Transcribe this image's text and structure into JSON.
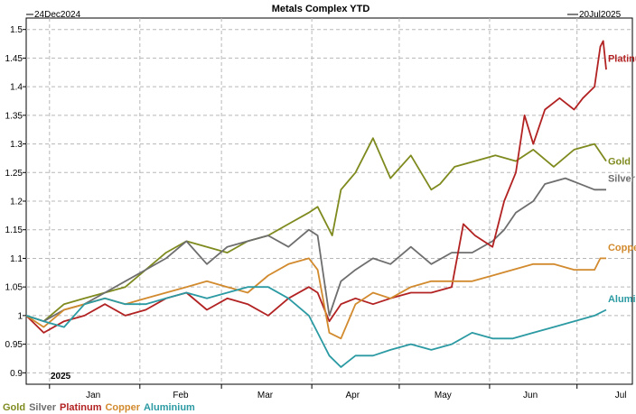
{
  "chart_data": {
    "type": "line",
    "title": "Metals Complex YTD",
    "start_label": "24Dec2024",
    "end_label": "20Jul2025",
    "year_label": "2025",
    "x_ticks": [
      "Jan",
      "Feb",
      "Mar",
      "Apr",
      "May",
      "Jun",
      "Jul"
    ],
    "y_ticks": [
      "0.9",
      "0.95",
      "1",
      "1.05",
      "1.1",
      "1.15",
      "1.2",
      "1.25",
      "1.3",
      "1.35",
      "1.4",
      "1.45",
      "1.5"
    ],
    "ylim": [
      0.88,
      1.52
    ],
    "x_range": [
      "2024-12-24",
      "2025-07-20"
    ],
    "grid": true,
    "legend_position": "bottom-left",
    "series": [
      {
        "name": "Gold",
        "color": "#7f8a1e",
        "dates": [
          "2024-12-24",
          "2024-12-30",
          "2025-01-06",
          "2025-01-13",
          "2025-01-20",
          "2025-01-27",
          "2025-02-03",
          "2025-02-10",
          "2025-02-17",
          "2025-02-24",
          "2025-03-03",
          "2025-03-10",
          "2025-03-17",
          "2025-03-24",
          "2025-03-31",
          "2025-04-03",
          "2025-04-08",
          "2025-04-11",
          "2025-04-16",
          "2025-04-22",
          "2025-04-28",
          "2025-05-05",
          "2025-05-12",
          "2025-05-15",
          "2025-05-20",
          "2025-05-27",
          "2025-06-03",
          "2025-06-10",
          "2025-06-16",
          "2025-06-23",
          "2025-06-30",
          "2025-07-07",
          "2025-07-11"
        ],
        "values": [
          1.0,
          0.99,
          1.02,
          1.03,
          1.04,
          1.05,
          1.08,
          1.11,
          1.13,
          1.12,
          1.11,
          1.13,
          1.14,
          1.16,
          1.18,
          1.19,
          1.14,
          1.22,
          1.25,
          1.31,
          1.24,
          1.28,
          1.22,
          1.23,
          1.26,
          1.27,
          1.28,
          1.27,
          1.29,
          1.26,
          1.29,
          1.3,
          1.27
        ]
      },
      {
        "name": "Silver",
        "color": "#6e6e6e",
        "dates": [
          "2024-12-24",
          "2024-12-30",
          "2025-01-06",
          "2025-01-13",
          "2025-01-20",
          "2025-01-27",
          "2025-02-03",
          "2025-02-10",
          "2025-02-17",
          "2025-02-24",
          "2025-03-03",
          "2025-03-10",
          "2025-03-17",
          "2025-03-24",
          "2025-03-31",
          "2025-04-03",
          "2025-04-07",
          "2025-04-11",
          "2025-04-16",
          "2025-04-22",
          "2025-04-28",
          "2025-05-05",
          "2025-05-12",
          "2025-05-19",
          "2025-05-26",
          "2025-06-02",
          "2025-06-06",
          "2025-06-10",
          "2025-06-16",
          "2025-06-20",
          "2025-06-27",
          "2025-07-07",
          "2025-07-11"
        ],
        "values": [
          1.0,
          0.99,
          1.01,
          1.02,
          1.04,
          1.06,
          1.08,
          1.1,
          1.13,
          1.09,
          1.12,
          1.13,
          1.14,
          1.12,
          1.15,
          1.14,
          1.0,
          1.06,
          1.08,
          1.1,
          1.09,
          1.12,
          1.09,
          1.11,
          1.11,
          1.13,
          1.15,
          1.18,
          1.2,
          1.23,
          1.24,
          1.22,
          1.22
        ]
      },
      {
        "name": "Platinum",
        "color": "#b22222",
        "dates": [
          "2024-12-24",
          "2024-12-30",
          "2025-01-06",
          "2025-01-13",
          "2025-01-20",
          "2025-01-27",
          "2025-02-03",
          "2025-02-10",
          "2025-02-17",
          "2025-02-24",
          "2025-03-03",
          "2025-03-10",
          "2025-03-17",
          "2025-03-24",
          "2025-03-31",
          "2025-04-03",
          "2025-04-07",
          "2025-04-11",
          "2025-04-16",
          "2025-04-22",
          "2025-04-28",
          "2025-05-05",
          "2025-05-12",
          "2025-05-19",
          "2025-05-23",
          "2025-05-27",
          "2025-06-02",
          "2025-06-06",
          "2025-06-10",
          "2025-06-13",
          "2025-06-16",
          "2025-06-20",
          "2025-06-25",
          "2025-06-30",
          "2025-07-03",
          "2025-07-07",
          "2025-07-09",
          "2025-07-10",
          "2025-07-11"
        ],
        "values": [
          1.0,
          0.97,
          0.99,
          1.0,
          1.02,
          1.0,
          1.01,
          1.03,
          1.04,
          1.01,
          1.03,
          1.02,
          1.0,
          1.03,
          1.05,
          1.04,
          0.99,
          1.02,
          1.03,
          1.02,
          1.03,
          1.04,
          1.04,
          1.05,
          1.16,
          1.14,
          1.12,
          1.2,
          1.25,
          1.35,
          1.3,
          1.36,
          1.38,
          1.36,
          1.38,
          1.4,
          1.47,
          1.48,
          1.43
        ]
      },
      {
        "name": "Copper",
        "color": "#d28a2e",
        "dates": [
          "2024-12-24",
          "2024-12-30",
          "2025-01-06",
          "2025-01-13",
          "2025-01-20",
          "2025-01-27",
          "2025-02-03",
          "2025-02-10",
          "2025-02-17",
          "2025-02-24",
          "2025-03-03",
          "2025-03-10",
          "2025-03-17",
          "2025-03-24",
          "2025-03-31",
          "2025-04-03",
          "2025-04-07",
          "2025-04-11",
          "2025-04-16",
          "2025-04-22",
          "2025-04-28",
          "2025-05-05",
          "2025-05-12",
          "2025-05-19",
          "2025-05-26",
          "2025-06-02",
          "2025-06-09",
          "2025-06-16",
          "2025-06-23",
          "2025-06-30",
          "2025-07-07",
          "2025-07-09",
          "2025-07-11"
        ],
        "values": [
          1.0,
          0.98,
          1.01,
          1.02,
          1.03,
          1.02,
          1.03,
          1.04,
          1.05,
          1.06,
          1.05,
          1.04,
          1.07,
          1.09,
          1.1,
          1.08,
          0.97,
          0.96,
          1.02,
          1.04,
          1.03,
          1.05,
          1.06,
          1.06,
          1.06,
          1.07,
          1.08,
          1.09,
          1.09,
          1.08,
          1.08,
          1.1,
          1.1
        ]
      },
      {
        "name": "Aluminium",
        "color": "#2b9aa3",
        "dates": [
          "2024-12-24",
          "2024-12-30",
          "2025-01-06",
          "2025-01-13",
          "2025-01-20",
          "2025-01-27",
          "2025-02-03",
          "2025-02-10",
          "2025-02-17",
          "2025-02-24",
          "2025-03-03",
          "2025-03-10",
          "2025-03-17",
          "2025-03-24",
          "2025-03-31",
          "2025-04-03",
          "2025-04-07",
          "2025-04-11",
          "2025-04-16",
          "2025-04-22",
          "2025-04-28",
          "2025-05-05",
          "2025-05-12",
          "2025-05-19",
          "2025-05-26",
          "2025-06-02",
          "2025-06-09",
          "2025-06-16",
          "2025-06-23",
          "2025-06-30",
          "2025-07-07",
          "2025-07-11"
        ],
        "values": [
          1.0,
          0.99,
          0.98,
          1.02,
          1.03,
          1.02,
          1.02,
          1.03,
          1.04,
          1.03,
          1.04,
          1.05,
          1.05,
          1.03,
          1.0,
          0.97,
          0.93,
          0.91,
          0.93,
          0.93,
          0.94,
          0.95,
          0.94,
          0.95,
          0.97,
          0.96,
          0.96,
          0.97,
          0.98,
          0.99,
          1.0,
          1.01
        ]
      }
    ],
    "end_labels": [
      {
        "series": "Platinum",
        "text": "Platinum",
        "value": 1.45
      },
      {
        "series": "Gold",
        "text": "Gold",
        "value": 1.27
      },
      {
        "series": "Silver",
        "text": "Silver",
        "value": 1.24
      },
      {
        "series": "Copper",
        "text": "Copper",
        "value": 1.12
      },
      {
        "series": "Aluminium",
        "text": "Aluminium",
        "value": 1.03
      }
    ]
  }
}
